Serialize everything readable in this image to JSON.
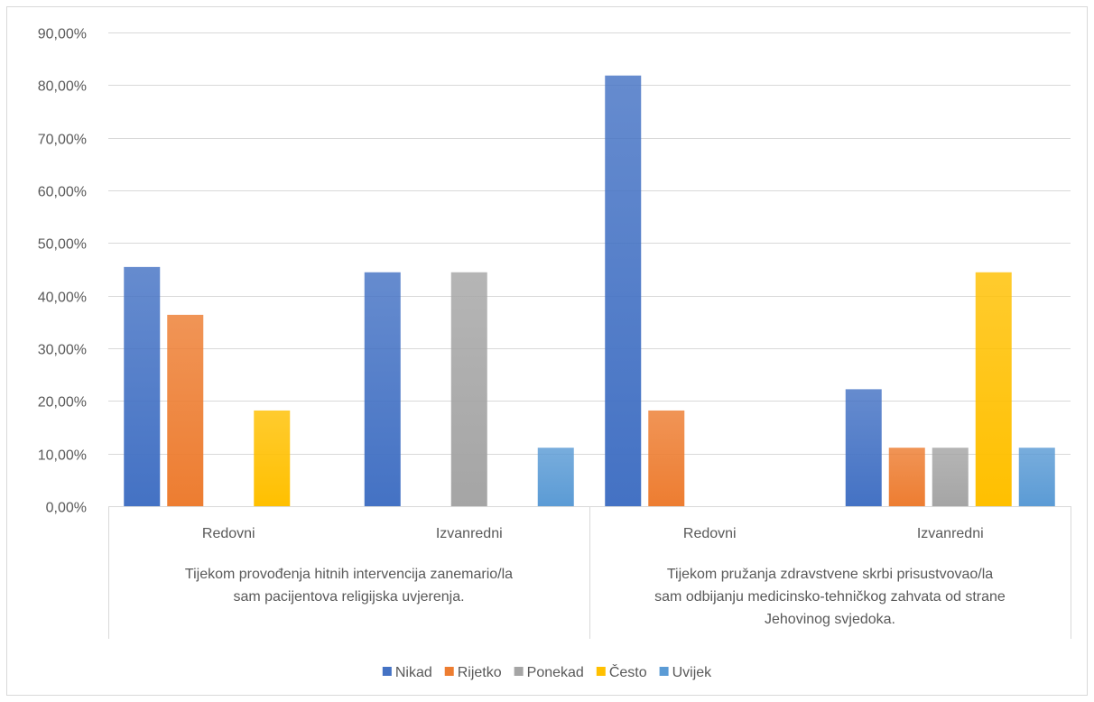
{
  "chart_data": {
    "type": "bar",
    "title": "",
    "xlabel": "",
    "ylabel": "",
    "ylim": [
      0,
      90
    ],
    "y_step": 10,
    "y_tick_format": "percent_2_decimals_comma",
    "grid": true,
    "legend_position": "bottom",
    "categories": [
      "Redovni",
      "Izvanredni",
      "Redovni",
      "Izvanredni"
    ],
    "groups": [
      {
        "label_lines": [
          "Tijekom provođenja hitnih intervencija zanemario/la",
          "sam pacijentova religijska uvjerenja."
        ],
        "categories": [
          0,
          1
        ]
      },
      {
        "label_lines": [
          "Tijekom pružanja zdravstvene skrbi prisustvovao/la",
          "sam odbijanju medicinsko-tehničkog zahvata od strane",
          "Jehovinog svjedoka."
        ],
        "categories": [
          2,
          3
        ]
      }
    ],
    "series": [
      {
        "name": "Nikad",
        "color": "#4472C4",
        "values": [
          45.45,
          44.44,
          81.82,
          22.22
        ]
      },
      {
        "name": "Rijetko",
        "color": "#ED7D31",
        "values": [
          36.36,
          0,
          18.18,
          11.11
        ]
      },
      {
        "name": "Ponekad",
        "color": "#A5A5A5",
        "values": [
          0,
          44.44,
          0,
          11.11
        ]
      },
      {
        "name": "Često",
        "color": "#FFC000",
        "values": [
          18.18,
          0,
          0,
          44.44
        ]
      },
      {
        "name": "Uvijek",
        "color": "#5B9BD5",
        "values": [
          0,
          11.11,
          0,
          11.11
        ]
      }
    ]
  }
}
